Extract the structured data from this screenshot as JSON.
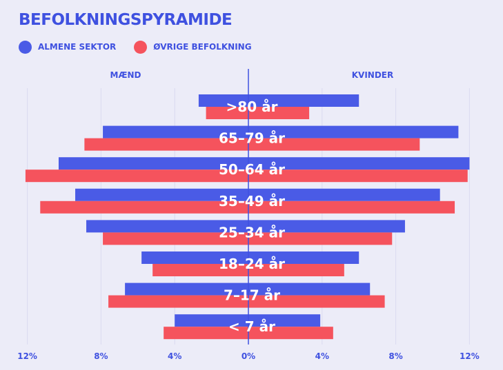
{
  "title": "BEFOLKNINGSPYRAMIDE",
  "colors": {
    "background": "#ececf8",
    "accent": "#3f51e0",
    "series_blue": "#4a5be6",
    "series_red": "#f5535d",
    "gridline": "#dadaf0",
    "label": "#ffffff"
  },
  "legend": [
    {
      "label": "ALMENE SEKTOR",
      "color": "#4a5be6"
    },
    {
      "label": "ØVRIGE BEFOLKNING",
      "color": "#f5535d"
    }
  ],
  "chart_data": {
    "type": "bar",
    "orientation": "horizontal-pyramid",
    "side_labels": {
      "left": "MÆND",
      "right": "KVINDER"
    },
    "categories": [
      ">80 år",
      "65–79 år",
      "50–64 år",
      "35–49 år",
      "25–34 år",
      "18–24 år",
      "7–17 år",
      "< 7 år"
    ],
    "series": [
      {
        "name": "ALMENE SEKTOR",
        "color": "#4a5be6",
        "men": [
          2.7,
          7.9,
          10.3,
          9.4,
          8.8,
          5.8,
          6.7,
          4.0
        ],
        "women": [
          6.0,
          11.4,
          12.0,
          10.4,
          8.5,
          6.0,
          6.6,
          3.9
        ]
      },
      {
        "name": "ØVRIGE BEFOLKNING",
        "color": "#f5535d",
        "men": [
          2.3,
          8.9,
          12.1,
          11.3,
          7.9,
          5.2,
          7.6,
          4.6
        ],
        "women": [
          3.3,
          9.3,
          11.9,
          11.2,
          7.8,
          5.2,
          7.4,
          4.6
        ]
      }
    ],
    "xlim": [
      -12,
      12
    ],
    "xticks": [
      -12,
      -8,
      -4,
      0,
      4,
      8,
      12
    ],
    "xtick_labels": [
      "12%",
      "8%",
      "4%",
      "0%",
      "4%",
      "8%",
      "12%"
    ],
    "grid": true
  }
}
